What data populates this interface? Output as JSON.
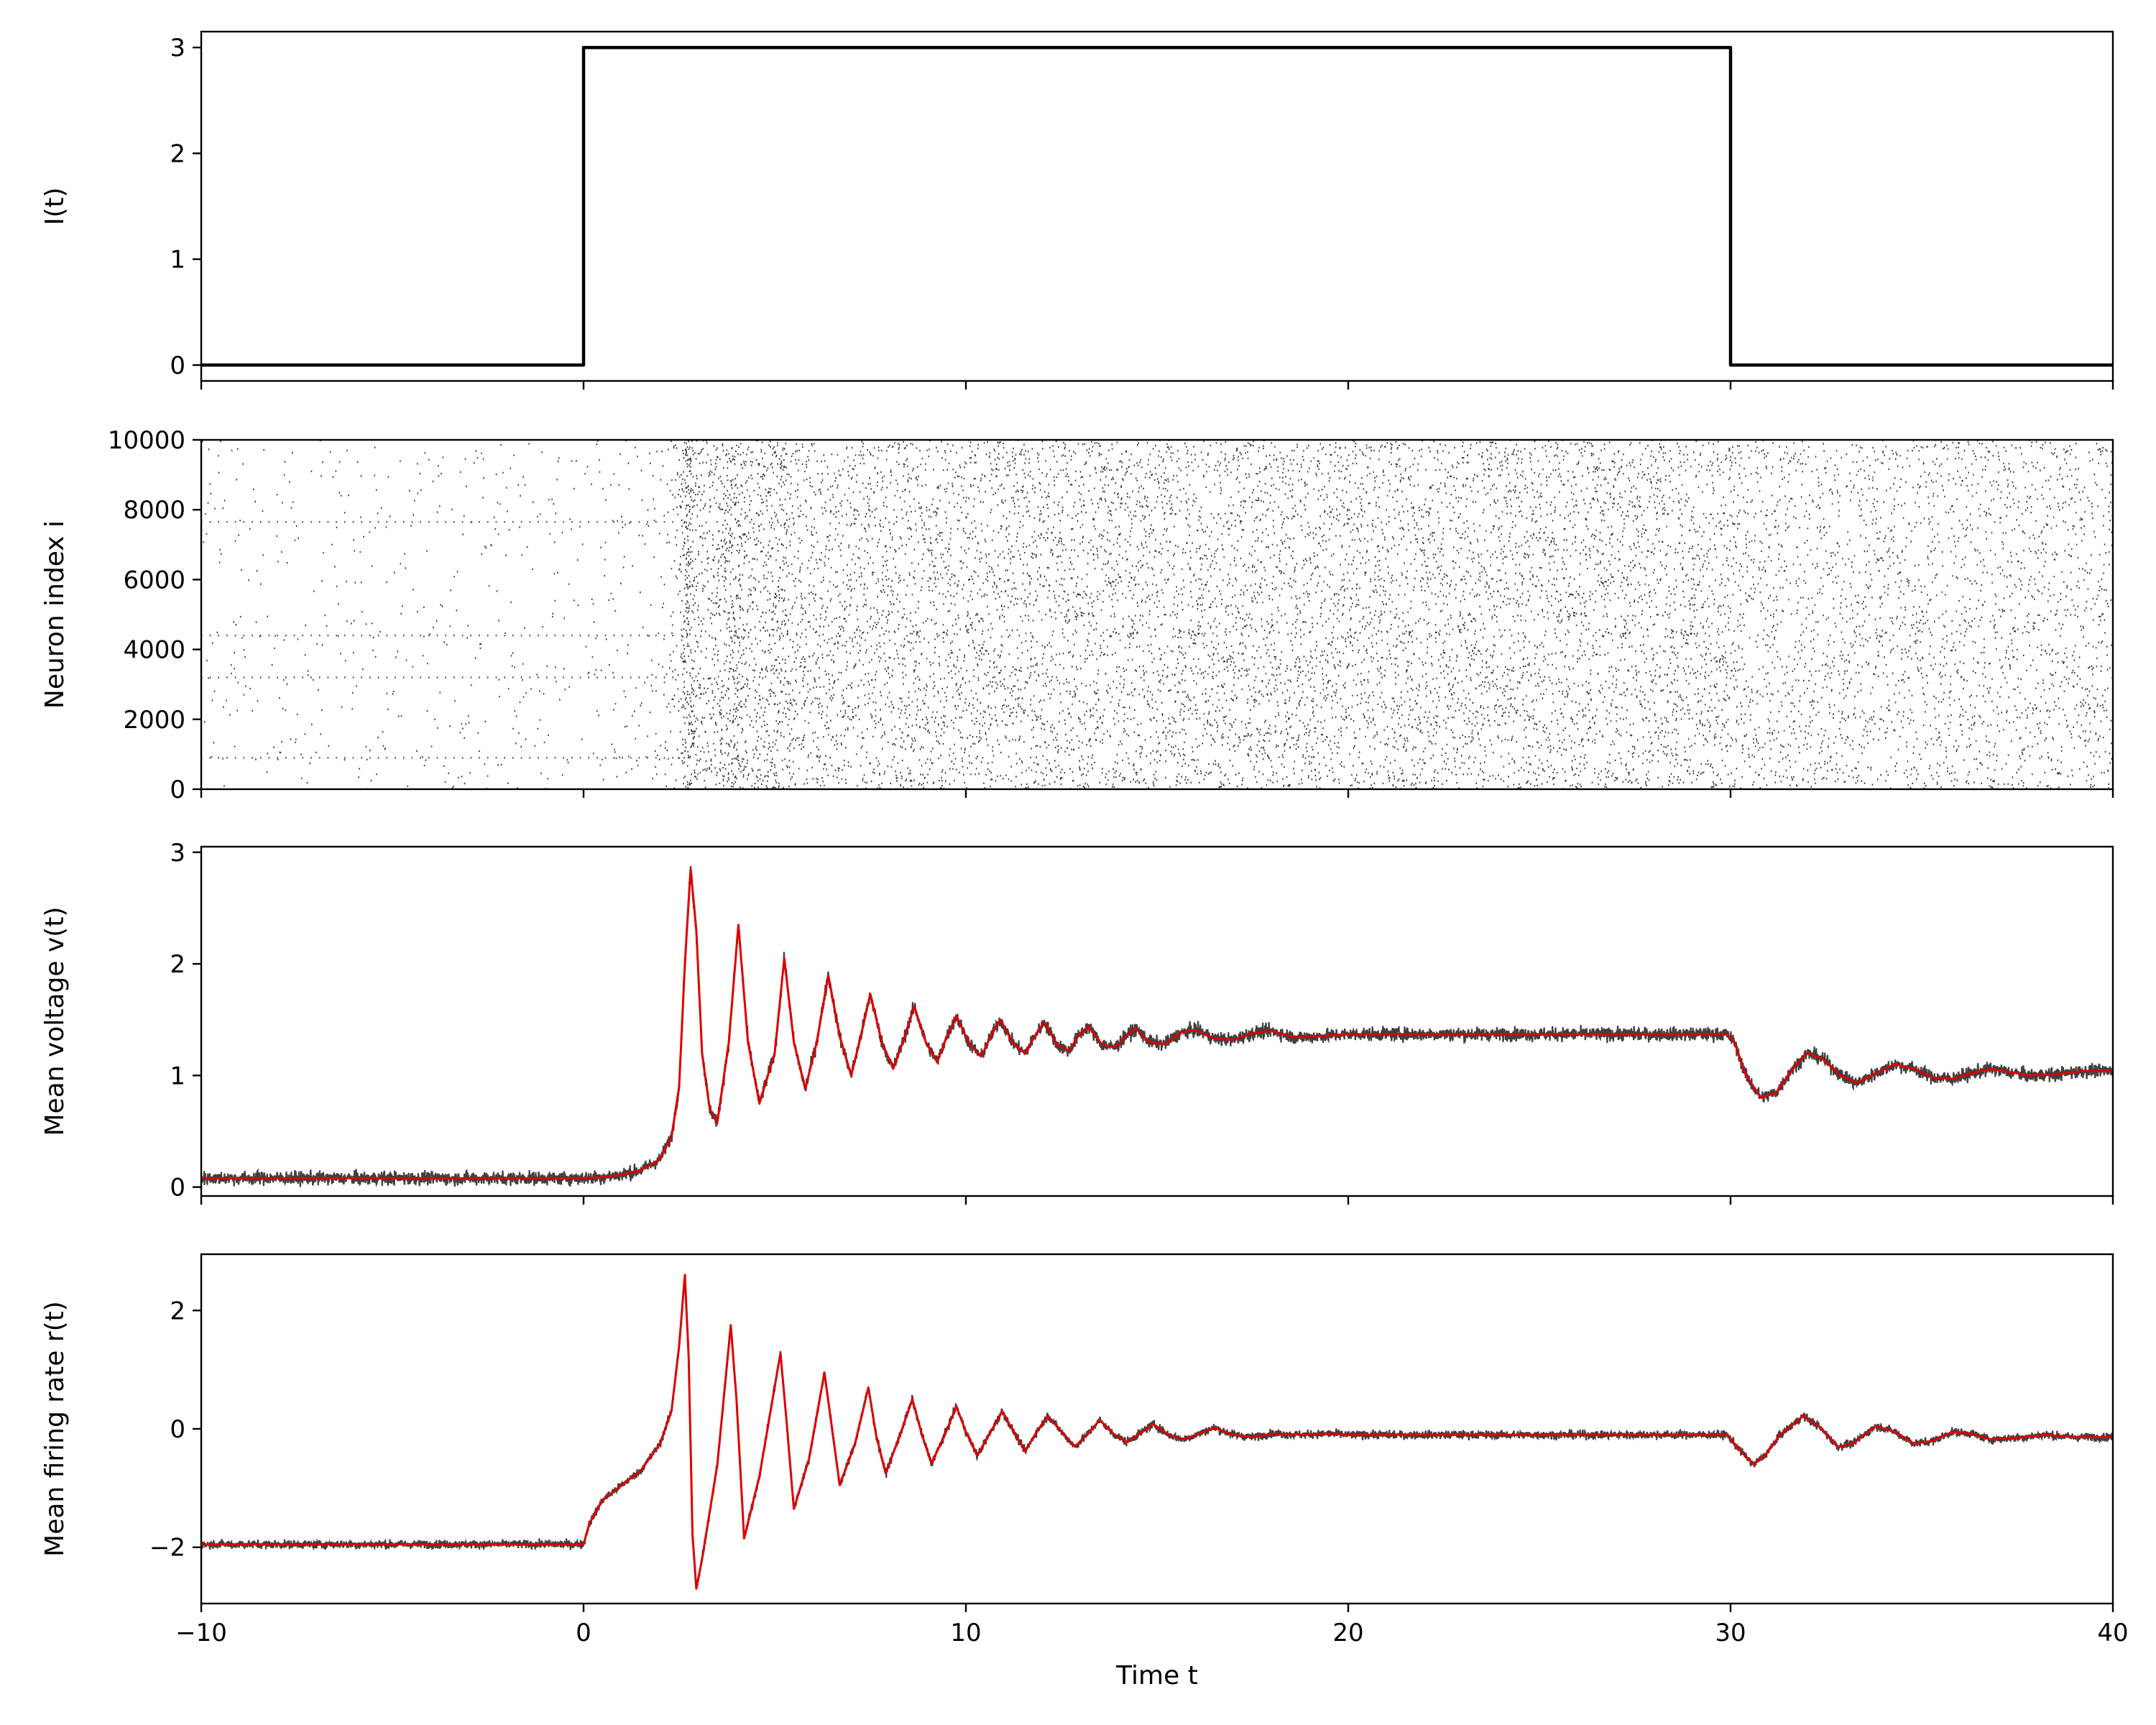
{
  "chart_data": [
    {
      "type": "line",
      "ylabel": "I(t)",
      "xlim": [
        -10,
        40
      ],
      "ylim": [
        -0.15,
        3.15
      ],
      "yticks": [
        "0",
        "1",
        "2",
        "3"
      ],
      "grid": false,
      "series": [
        {
          "color": "#000000",
          "points": [
            [
              -10,
              0
            ],
            [
              0,
              0
            ],
            [
              0,
              3
            ],
            [
              30,
              3
            ],
            [
              30,
              0
            ],
            [
              40,
              0
            ]
          ]
        }
      ]
    },
    {
      "type": "scatter",
      "ylabel": "Neuron index i",
      "xlim": [
        -10,
        40
      ],
      "ylim": [
        0,
        10000
      ],
      "yticks": [
        "0",
        "2000",
        "4000",
        "6000",
        "8000",
        "10000"
      ],
      "grid": false,
      "density_profile": {
        "color": "#333333",
        "x": [
          -10,
          0,
          2,
          2.5,
          2.7,
          2.9,
          3.2,
          4.0,
          4.3,
          5.2,
          5.5,
          8,
          12,
          20,
          29.9,
          30.5,
          33,
          40
        ],
        "spikes_per_unit_time": [
          10,
          10,
          20,
          60,
          300,
          120,
          80,
          180,
          90,
          140,
          80,
          85,
          85,
          85,
          85,
          60,
          60,
          60
        ]
      }
    },
    {
      "type": "line",
      "ylabel": "Mean voltage v(t)",
      "xlim": [
        -10,
        40
      ],
      "ylim": [
        -0.08,
        3.05
      ],
      "yticks": [
        "0",
        "1",
        "2",
        "3"
      ],
      "grid": false,
      "noise_band": {
        "color": "#404040",
        "amplitude": 0.06
      },
      "series": [
        {
          "color": "#dd0000",
          "points": [
            [
              -10,
              0.08
            ],
            [
              0,
              0.08
            ],
            [
              0.5,
              0.09
            ],
            [
              1,
              0.11
            ],
            [
              1.5,
              0.15
            ],
            [
              2,
              0.25
            ],
            [
              2.3,
              0.45
            ],
            [
              2.5,
              0.9
            ],
            [
              2.65,
              2.0
            ],
            [
              2.8,
              2.85
            ],
            [
              2.95,
              2.3
            ],
            [
              3.1,
              1.2
            ],
            [
              3.3,
              0.7
            ],
            [
              3.5,
              0.58
            ],
            [
              3.8,
              1.3
            ],
            [
              4.05,
              2.35
            ],
            [
              4.3,
              1.3
            ],
            [
              4.6,
              0.75
            ],
            [
              5.0,
              1.2
            ],
            [
              5.25,
              2.05
            ],
            [
              5.5,
              1.3
            ],
            [
              5.8,
              0.88
            ],
            [
              6.1,
              1.3
            ],
            [
              6.4,
              1.9
            ],
            [
              6.7,
              1.35
            ],
            [
              7.0,
              1.0
            ],
            [
              7.25,
              1.35
            ],
            [
              7.5,
              1.73
            ],
            [
              7.8,
              1.3
            ],
            [
              8.1,
              1.06
            ],
            [
              8.4,
              1.35
            ],
            [
              8.65,
              1.62
            ],
            [
              8.95,
              1.3
            ],
            [
              9.25,
              1.12
            ],
            [
              9.5,
              1.35
            ],
            [
              9.75,
              1.53
            ],
            [
              10.1,
              1.28
            ],
            [
              10.4,
              1.17
            ],
            [
              10.65,
              1.35
            ],
            [
              10.9,
              1.5
            ],
            [
              11.25,
              1.28
            ],
            [
              11.55,
              1.2
            ],
            [
              11.8,
              1.35
            ],
            [
              12.05,
              1.48
            ],
            [
              12.4,
              1.27
            ],
            [
              12.7,
              1.22
            ],
            [
              12.95,
              1.36
            ],
            [
              13.2,
              1.44
            ],
            [
              13.55,
              1.28
            ],
            [
              13.9,
              1.25
            ],
            [
              14.2,
              1.36
            ],
            [
              14.45,
              1.42
            ],
            [
              14.8,
              1.3
            ],
            [
              15.2,
              1.28
            ],
            [
              15.6,
              1.38
            ],
            [
              16.0,
              1.41
            ],
            [
              16.5,
              1.33
            ],
            [
              17,
              1.32
            ],
            [
              17.5,
              1.38
            ],
            [
              18,
              1.4
            ],
            [
              18.6,
              1.34
            ],
            [
              19.2,
              1.35
            ],
            [
              20,
              1.37
            ],
            [
              22,
              1.37
            ],
            [
              25,
              1.37
            ],
            [
              29.9,
              1.37
            ],
            [
              30.1,
              1.3
            ],
            [
              30.4,
              1.0
            ],
            [
              30.8,
              0.8
            ],
            [
              31.2,
              0.85
            ],
            [
              31.6,
              1.05
            ],
            [
              32.0,
              1.2
            ],
            [
              32.4,
              1.15
            ],
            [
              32.9,
              1.0
            ],
            [
              33.3,
              0.93
            ],
            [
              33.8,
              1.02
            ],
            [
              34.3,
              1.1
            ],
            [
              34.8,
              1.06
            ],
            [
              35.3,
              0.98
            ],
            [
              35.8,
              0.97
            ],
            [
              36.3,
              1.02
            ],
            [
              36.8,
              1.06
            ],
            [
              37.3,
              1.03
            ],
            [
              37.8,
              1.0
            ],
            [
              38.5,
              1.01
            ],
            [
              39.2,
              1.04
            ],
            [
              40,
              1.04
            ]
          ]
        }
      ]
    },
    {
      "type": "line",
      "ylabel": "Mean firing rate r(t)",
      "xlabel": "Time t",
      "xlim": [
        -10,
        40
      ],
      "ylim": [
        -2.95,
        2.95
      ],
      "xticks": [
        "−10",
        "0",
        "10",
        "20",
        "30",
        "40"
      ],
      "yticks": [
        "−2",
        "0",
        "2"
      ],
      "grid": false,
      "noise_band": {
        "color": "#404040",
        "amplitude": 0.07
      },
      "series": [
        {
          "color": "#dd0000",
          "points": [
            [
              -10,
              -1.95
            ],
            [
              0,
              -1.95
            ],
            [
              0.15,
              -1.6
            ],
            [
              0.5,
              -1.2
            ],
            [
              1,
              -0.95
            ],
            [
              1.5,
              -0.7
            ],
            [
              2,
              -0.25
            ],
            [
              2.3,
              0.3
            ],
            [
              2.5,
              1.4
            ],
            [
              2.65,
              2.6
            ],
            [
              2.75,
              1.2
            ],
            [
              2.85,
              -1.8
            ],
            [
              2.95,
              -2.7
            ],
            [
              3.1,
              -2.2
            ],
            [
              3.5,
              -0.6
            ],
            [
              3.85,
              1.75
            ],
            [
              4.0,
              0.5
            ],
            [
              4.2,
              -1.85
            ],
            [
              4.6,
              -0.8
            ],
            [
              5.15,
              1.28
            ],
            [
              5.3,
              0.2
            ],
            [
              5.5,
              -1.35
            ],
            [
              5.9,
              -0.5
            ],
            [
              6.3,
              0.95
            ],
            [
              6.5,
              0.0
            ],
            [
              6.7,
              -0.95
            ],
            [
              7.1,
              -0.25
            ],
            [
              7.45,
              0.7
            ],
            [
              7.65,
              -0.1
            ],
            [
              7.9,
              -0.75
            ],
            [
              8.25,
              -0.15
            ],
            [
              8.6,
              0.5
            ],
            [
              8.85,
              -0.1
            ],
            [
              9.1,
              -0.58
            ],
            [
              9.45,
              -0.1
            ],
            [
              9.75,
              0.38
            ],
            [
              10.0,
              -0.05
            ],
            [
              10.3,
              -0.45
            ],
            [
              10.65,
              -0.05
            ],
            [
              10.95,
              0.3
            ],
            [
              11.25,
              -0.05
            ],
            [
              11.55,
              -0.38
            ],
            [
              11.85,
              -0.05
            ],
            [
              12.15,
              0.22
            ],
            [
              12.5,
              -0.05
            ],
            [
              12.85,
              -0.3
            ],
            [
              13.2,
              -0.08
            ],
            [
              13.5,
              0.15
            ],
            [
              13.85,
              -0.08
            ],
            [
              14.2,
              -0.22
            ],
            [
              14.55,
              -0.08
            ],
            [
              14.9,
              0.08
            ],
            [
              15.3,
              -0.1
            ],
            [
              15.7,
              -0.18
            ],
            [
              16.1,
              -0.08
            ],
            [
              16.5,
              0.02
            ],
            [
              17,
              -0.1
            ],
            [
              17.5,
              -0.14
            ],
            [
              18,
              -0.08
            ],
            [
              18.8,
              -0.1
            ],
            [
              19.5,
              -0.08
            ],
            [
              20,
              -0.1
            ],
            [
              25,
              -0.1
            ],
            [
              29.9,
              -0.1
            ],
            [
              30.3,
              -0.4
            ],
            [
              30.6,
              -0.6
            ],
            [
              30.9,
              -0.45
            ],
            [
              31.3,
              -0.1
            ],
            [
              31.9,
              0.22
            ],
            [
              32.3,
              0.05
            ],
            [
              32.8,
              -0.3
            ],
            [
              33.2,
              -0.25
            ],
            [
              33.8,
              0.05
            ],
            [
              34.3,
              -0.05
            ],
            [
              34.8,
              -0.25
            ],
            [
              35.3,
              -0.2
            ],
            [
              35.8,
              -0.05
            ],
            [
              36.3,
              -0.08
            ],
            [
              36.8,
              -0.18
            ],
            [
              37.5,
              -0.15
            ],
            [
              38.2,
              -0.1
            ],
            [
              39,
              -0.14
            ],
            [
              40,
              -0.14
            ]
          ]
        }
      ]
    }
  ]
}
